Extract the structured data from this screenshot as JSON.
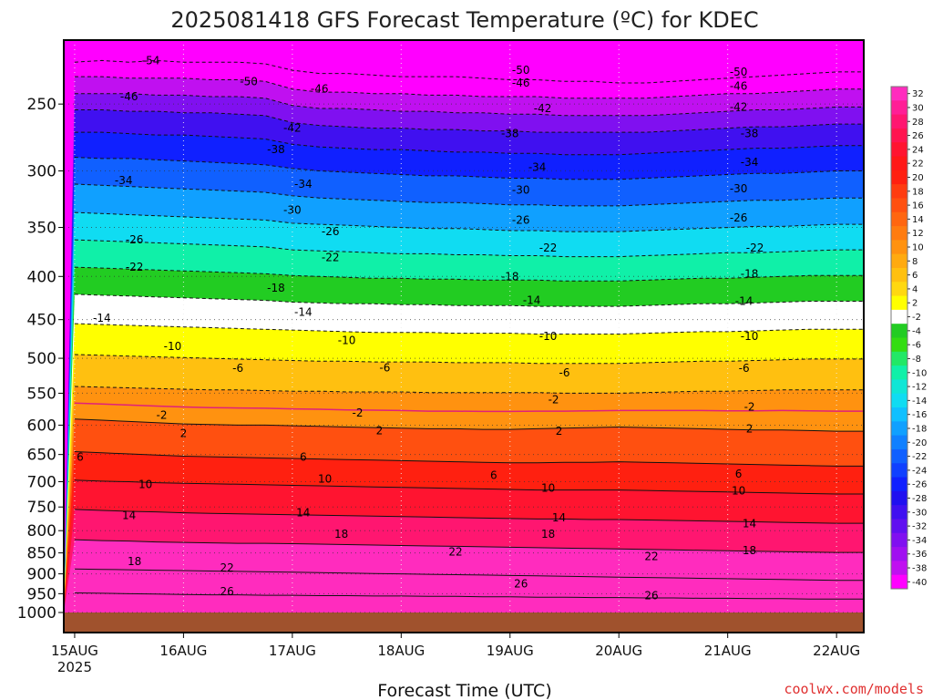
{
  "chart_data": {
    "type": "heatmap",
    "title": "2025081418 GFS Forecast Temperature (ºC) for KDEC",
    "xlabel": "Forecast Time (UTC)",
    "ylabel": "",
    "credit": "coolwx.com/models",
    "x_ticks": [
      "15AUG",
      "16AUG",
      "17AUG",
      "18AUG",
      "19AUG",
      "20AUG",
      "21AUG",
      "22AUG"
    ],
    "x_tick_sublabel": "2025",
    "y_ticks": [
      "250",
      "300",
      "350",
      "400",
      "450",
      "500",
      "550",
      "600",
      "650",
      "700",
      "750",
      "800",
      "850",
      "900",
      "950",
      "1000"
    ],
    "y_scale": "log",
    "ylim": [
      1000,
      210
    ],
    "xlim_days": [
      -0.1,
      7.25
    ],
    "grid": "dotted",
    "colorbar_labels": [
      "32",
      "30",
      "28",
      "26",
      "24",
      "22",
      "20",
      "18",
      "16",
      "14",
      "12",
      "10",
      "8",
      "6",
      "4",
      "2",
      "-2",
      "-4",
      "-6",
      "-8",
      "-10",
      "-12",
      "-14",
      "-16",
      "-18",
      "-20",
      "-22",
      "-24",
      "-26",
      "-28",
      "-30",
      "-32",
      "-34",
      "-36",
      "-38",
      "-40"
    ],
    "colorbar_colors": [
      "#ff2cbe",
      "#ff1e96",
      "#ff1670",
      "#ff1450",
      "#ff1430",
      "#ff1818",
      "#ff2010",
      "#ff3c10",
      "#ff5010",
      "#ff6610",
      "#ff7c10",
      "#ff9210",
      "#ffaa10",
      "#ffc010",
      "#ffd810",
      "#ffff00",
      "#ffffff",
      "#22cc22",
      "#33dd11",
      "#22e866",
      "#10f0a8",
      "#10e6d6",
      "#10dcf2",
      "#10c0ff",
      "#10a0ff",
      "#1080ff",
      "#1060ff",
      "#1040ff",
      "#1020ff",
      "#2010f0",
      "#4010f0",
      "#6010f0",
      "#8010f0",
      "#a010f0",
      "#c010f0",
      "#ff00ff"
    ],
    "ground_color": "#a0522d",
    "x": [
      0,
      0.25,
      0.5,
      0.75,
      1,
      1.25,
      1.5,
      1.75,
      2,
      2.25,
      2.5,
      2.75,
      3,
      3.25,
      3.5,
      3.75,
      4,
      4.25,
      4.5,
      4.75,
      5,
      5.25,
      5.5,
      5.75,
      6,
      6.25,
      6.5,
      6.75,
      7,
      7.25
    ],
    "series": [
      {
        "name": "-54",
        "pressure": [
          223,
          222,
          223,
          222,
          223,
          223,
          223,
          224,
          228,
          230,
          230,
          231,
          232,
          232,
          232,
          233,
          234,
          234,
          235,
          235,
          236,
          236,
          235,
          234,
          233,
          232,
          231,
          230,
          229,
          229
        ]
      },
      {
        "name": "-50",
        "pressure": [
          232,
          232,
          233,
          233,
          233,
          234,
          234,
          235,
          240,
          242,
          242,
          243,
          243,
          244,
          244,
          245,
          245,
          245,
          246,
          246,
          246,
          246,
          245,
          244,
          243,
          243,
          242,
          241,
          240,
          240
        ]
      },
      {
        "name": "-46",
        "pressure": [
          243,
          243,
          243,
          244,
          244,
          245,
          245,
          246,
          251,
          253,
          253,
          254,
          255,
          255,
          256,
          256,
          257,
          257,
          258,
          258,
          258,
          258,
          257,
          256,
          255,
          254,
          254,
          253,
          252,
          252
        ]
      },
      {
        "name": "-42",
        "pressure": [
          254,
          254,
          255,
          255,
          256,
          256,
          257,
          258,
          263,
          265,
          266,
          267,
          267,
          268,
          268,
          269,
          269,
          270,
          270,
          270,
          270,
          270,
          269,
          268,
          267,
          266,
          266,
          265,
          264,
          264
        ]
      },
      {
        "name": "-38",
        "pressure": [
          270,
          270,
          271,
          272,
          272,
          273,
          274,
          275,
          279,
          281,
          282,
          283,
          283,
          284,
          285,
          285,
          286,
          286,
          287,
          287,
          287,
          286,
          285,
          284,
          283,
          282,
          282,
          281,
          280,
          280
        ]
      },
      {
        "name": "-34",
        "pressure": [
          289,
          290,
          290,
          291,
          292,
          293,
          294,
          295,
          298,
          300,
          301,
          302,
          303,
          304,
          304,
          305,
          306,
          306,
          307,
          307,
          307,
          306,
          305,
          304,
          303,
          302,
          302,
          301,
          300,
          300
        ]
      },
      {
        "name": "-30",
        "pressure": [
          311,
          312,
          313,
          314,
          315,
          316,
          317,
          318,
          321,
          323,
          324,
          325,
          326,
          327,
          327,
          328,
          329,
          329,
          330,
          330,
          330,
          329,
          328,
          327,
          326,
          325,
          325,
          324,
          323,
          323
        ]
      },
      {
        "name": "-26",
        "pressure": [
          336,
          337,
          338,
          339,
          340,
          341,
          342,
          343,
          346,
          347,
          348,
          349,
          350,
          351,
          351,
          352,
          353,
          353,
          354,
          354,
          354,
          353,
          352,
          351,
          350,
          349,
          349,
          348,
          347,
          347
        ]
      },
      {
        "name": "-22",
        "pressure": [
          362,
          363,
          364,
          365,
          366,
          367,
          368,
          369,
          372,
          373,
          374,
          375,
          376,
          376,
          377,
          377,
          378,
          378,
          379,
          379,
          379,
          378,
          377,
          376,
          375,
          375,
          374,
          373,
          372,
          372
        ]
      },
      {
        "name": "-18",
        "pressure": [
          390,
          391,
          392,
          393,
          394,
          395,
          396,
          397,
          399,
          400,
          401,
          402,
          402,
          403,
          403,
          404,
          404,
          404,
          405,
          405,
          405,
          404,
          403,
          402,
          402,
          401,
          400,
          399,
          399,
          399
        ]
      },
      {
        "name": "-14",
        "pressure": [
          420,
          421,
          422,
          423,
          424,
          425,
          426,
          427,
          429,
          430,
          431,
          431,
          432,
          432,
          433,
          433,
          433,
          434,
          434,
          434,
          434,
          433,
          432,
          431,
          431,
          430,
          429,
          428,
          428,
          428
        ]
      },
      {
        "name": "-10",
        "pressure": [
          455,
          456,
          457,
          458,
          459,
          460,
          461,
          462,
          463,
          464,
          465,
          466,
          466,
          466,
          467,
          467,
          467,
          468,
          468,
          468,
          468,
          467,
          466,
          465,
          465,
          464,
          463,
          462,
          462,
          462
        ]
      },
      {
        "name": "-6",
        "pressure": [
          495,
          496,
          497,
          498,
          499,
          500,
          501,
          502,
          503,
          504,
          504,
          505,
          505,
          505,
          506,
          506,
          506,
          507,
          507,
          507,
          507,
          506,
          505,
          504,
          504,
          503,
          502,
          501,
          501,
          501
        ]
      },
      {
        "name": "-2",
        "pressure": [
          540,
          541,
          542,
          543,
          544,
          545,
          545,
          546,
          547,
          547,
          548,
          548,
          548,
          549,
          549,
          549,
          549,
          549,
          550,
          550,
          550,
          549,
          548,
          547,
          547,
          546,
          545,
          545,
          545,
          545
        ]
      },
      {
        "name": "2",
        "pressure": [
          590,
          592,
          594,
          596,
          598,
          599,
          600,
          600,
          601,
          602,
          603,
          604,
          605,
          606,
          606,
          607,
          607,
          606,
          605,
          604,
          603,
          604,
          605,
          606,
          607,
          608,
          608,
          609,
          610,
          610
        ]
      },
      {
        "name": "6",
        "pressure": [
          645,
          647,
          649,
          651,
          653,
          654,
          655,
          656,
          657,
          658,
          659,
          660,
          661,
          662,
          663,
          664,
          665,
          665,
          664,
          664,
          663,
          664,
          665,
          666,
          667,
          668,
          669,
          670,
          671,
          671
        ]
      },
      {
        "name": "10",
        "pressure": [
          697,
          699,
          700,
          702,
          703,
          704,
          705,
          706,
          707,
          708,
          709,
          710,
          711,
          712,
          713,
          714,
          715,
          716,
          716,
          716,
          716,
          717,
          718,
          719,
          720,
          721,
          722,
          723,
          724,
          724
        ]
      },
      {
        "name": "14",
        "pressure": [
          755,
          757,
          759,
          760,
          762,
          763,
          764,
          765,
          766,
          767,
          768,
          769,
          770,
          771,
          772,
          773,
          774,
          775,
          775,
          776,
          776,
          777,
          778,
          779,
          780,
          781,
          782,
          783,
          784,
          784
        ]
      },
      {
        "name": "18",
        "pressure": [
          820,
          822,
          823,
          825,
          826,
          827,
          828,
          828,
          829,
          830,
          831,
          832,
          833,
          834,
          835,
          836,
          837,
          838,
          839,
          840,
          841,
          842,
          843,
          844,
          845,
          846,
          847,
          848,
          849,
          849
        ]
      },
      {
        "name": "22",
        "pressure": [
          888,
          889,
          890,
          891,
          892,
          893,
          894,
          895,
          896,
          897,
          898,
          899,
          900,
          901,
          902,
          903,
          904,
          905,
          906,
          907,
          908,
          909,
          910,
          911,
          912,
          913,
          914,
          915,
          916,
          916
        ]
      },
      {
        "name": "26",
        "pressure": [
          948,
          949,
          950,
          951,
          952,
          953,
          953,
          954,
          954,
          955,
          955,
          956,
          956,
          957,
          957,
          958,
          958,
          959,
          959,
          960,
          960,
          961,
          961,
          962,
          962,
          963,
          963,
          964,
          964,
          964
        ]
      }
    ],
    "contour_labels": [
      {
        "text": "-54",
        "day": 0.7,
        "p": 222
      },
      {
        "text": "-50",
        "day": 1.6,
        "p": 235
      },
      {
        "text": "-50",
        "day": 4.1,
        "p": 228
      },
      {
        "text": "-50",
        "day": 6.1,
        "p": 229
      },
      {
        "text": "-46",
        "day": 0.5,
        "p": 245
      },
      {
        "text": "-46",
        "day": 2.25,
        "p": 240
      },
      {
        "text": "-46",
        "day": 4.1,
        "p": 236
      },
      {
        "text": "-46",
        "day": 6.1,
        "p": 238
      },
      {
        "text": "-42",
        "day": 2.0,
        "p": 267
      },
      {
        "text": "-42",
        "day": 4.3,
        "p": 253
      },
      {
        "text": "-42",
        "day": 6.1,
        "p": 252
      },
      {
        "text": "-38",
        "day": 1.85,
        "p": 283
      },
      {
        "text": "-38",
        "day": 4.0,
        "p": 271
      },
      {
        "text": "-38",
        "day": 6.2,
        "p": 271
      },
      {
        "text": "-34",
        "day": 0.45,
        "p": 308
      },
      {
        "text": "-34",
        "day": 2.1,
        "p": 311
      },
      {
        "text": "-34",
        "day": 4.25,
        "p": 297
      },
      {
        "text": "-34",
        "day": 6.2,
        "p": 293
      },
      {
        "text": "-30",
        "day": 2.0,
        "p": 334
      },
      {
        "text": "-30",
        "day": 4.1,
        "p": 316
      },
      {
        "text": "-30",
        "day": 6.1,
        "p": 315
      },
      {
        "text": "-26",
        "day": 0.55,
        "p": 362
      },
      {
        "text": "-26",
        "day": 2.35,
        "p": 354
      },
      {
        "text": "-26",
        "day": 4.1,
        "p": 343
      },
      {
        "text": "-26",
        "day": 6.1,
        "p": 341
      },
      {
        "text": "-22",
        "day": 0.55,
        "p": 390
      },
      {
        "text": "-22",
        "day": 2.35,
        "p": 380
      },
      {
        "text": "-22",
        "day": 4.35,
        "p": 370
      },
      {
        "text": "-22",
        "day": 6.25,
        "p": 370
      },
      {
        "text": "-18",
        "day": 1.85,
        "p": 413
      },
      {
        "text": "-18",
        "day": 4.0,
        "p": 400
      },
      {
        "text": "-18",
        "day": 6.2,
        "p": 397
      },
      {
        "text": "-14",
        "day": 0.25,
        "p": 448
      },
      {
        "text": "-14",
        "day": 2.1,
        "p": 441
      },
      {
        "text": "-14",
        "day": 4.2,
        "p": 427
      },
      {
        "text": "-14",
        "day": 6.15,
        "p": 428
      },
      {
        "text": "-10",
        "day": 0.9,
        "p": 484
      },
      {
        "text": "-10",
        "day": 2.5,
        "p": 476
      },
      {
        "text": "-10",
        "day": 4.35,
        "p": 471
      },
      {
        "text": "-10",
        "day": 6.2,
        "p": 471
      },
      {
        "text": "-6",
        "day": 1.5,
        "p": 514
      },
      {
        "text": "-6",
        "day": 2.85,
        "p": 513
      },
      {
        "text": "-6",
        "day": 4.5,
        "p": 520
      },
      {
        "text": "-6",
        "day": 6.15,
        "p": 514
      },
      {
        "text": "-2",
        "day": 0.8,
        "p": 584
      },
      {
        "text": "-2",
        "day": 2.6,
        "p": 580
      },
      {
        "text": "-2",
        "day": 4.4,
        "p": 560
      },
      {
        "text": "-2",
        "day": 6.2,
        "p": 571
      },
      {
        "text": "2",
        "day": 1.0,
        "p": 614
      },
      {
        "text": "2",
        "day": 2.8,
        "p": 609
      },
      {
        "text": "2",
        "day": 4.45,
        "p": 610
      },
      {
        "text": "2",
        "day": 6.2,
        "p": 606
      },
      {
        "text": "6",
        "day": 0.05,
        "p": 655
      },
      {
        "text": "6",
        "day": 2.1,
        "p": 655
      },
      {
        "text": "6",
        "day": 3.85,
        "p": 688
      },
      {
        "text": "6",
        "day": 6.1,
        "p": 685
      },
      {
        "text": "10",
        "day": 0.65,
        "p": 705
      },
      {
        "text": "10",
        "day": 2.3,
        "p": 695
      },
      {
        "text": "10",
        "day": 4.35,
        "p": 712
      },
      {
        "text": "10",
        "day": 6.1,
        "p": 718
      },
      {
        "text": "14",
        "day": 0.5,
        "p": 767
      },
      {
        "text": "14",
        "day": 2.1,
        "p": 762
      },
      {
        "text": "14",
        "day": 4.45,
        "p": 772
      },
      {
        "text": "14",
        "day": 6.2,
        "p": 785
      },
      {
        "text": "18",
        "day": 0.55,
        "p": 870
      },
      {
        "text": "18",
        "day": 2.45,
        "p": 808
      },
      {
        "text": "18",
        "day": 4.35,
        "p": 808
      },
      {
        "text": "18",
        "day": 6.2,
        "p": 844
      },
      {
        "text": "22",
        "day": 1.4,
        "p": 885
      },
      {
        "text": "22",
        "day": 3.5,
        "p": 848
      },
      {
        "text": "22",
        "day": 5.3,
        "p": 858
      },
      {
        "text": "26",
        "day": 1.4,
        "p": 945
      },
      {
        "text": "26",
        "day": 4.1,
        "p": 925
      },
      {
        "text": "26",
        "day": 5.3,
        "p": 955
      }
    ]
  }
}
